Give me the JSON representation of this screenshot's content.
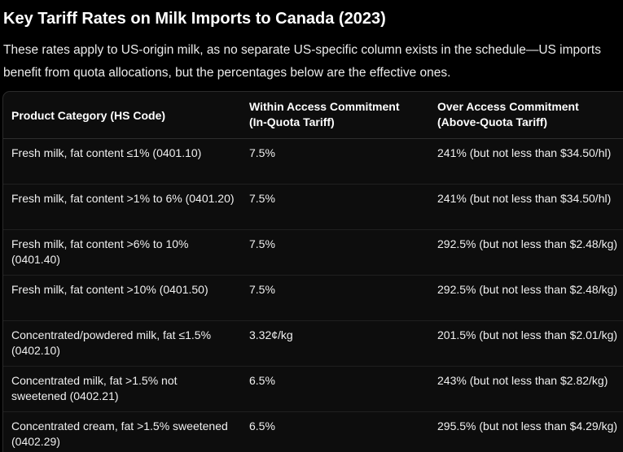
{
  "title": "Key Tariff Rates on Milk Imports to Canada (2023)",
  "intro": "These rates apply to US-origin milk, as no separate US-specific column exists in the schedule—US imports benefit from quota allocations, but the percentages below are the effective ones.",
  "table": {
    "headers": [
      "Product Category (HS Code)",
      "Within Access Commitment (In-Quota Tariff)",
      "Over Access Commitment (Above-Quota Tariff)"
    ],
    "header_lines": [
      [
        "Product Category (HS Code)"
      ],
      [
        "Within Access Commitment",
        "(In-Quota Tariff)"
      ],
      [
        "Over Access Commitment",
        "(Above-Quota Tariff)"
      ]
    ],
    "rows": [
      {
        "category": "Fresh milk, fat content ≤1% (0401.10)",
        "within": "7.5%",
        "over": "241% (but not less than $34.50/hl)"
      },
      {
        "category": "Fresh milk, fat content >1% to 6% (0401.20)",
        "within": "7.5%",
        "over": "241% (but not less than $34.50/hl)"
      },
      {
        "category": "Fresh milk, fat content >6% to 10% (0401.40)",
        "within": "7.5%",
        "over": "292.5% (but not less than $2.48/kg)"
      },
      {
        "category": "Fresh milk, fat content >10% (0401.50)",
        "within": "7.5%",
        "over": "292.5% (but not less than $2.48/kg)"
      },
      {
        "category": "Concentrated/powdered milk, fat ≤1.5% (0402.10)",
        "within": "3.32¢/kg",
        "over": "201.5% (but not less than $2.01/kg)"
      },
      {
        "category": "Concentrated milk, fat >1.5% not sweetened (0402.21)",
        "within": "6.5%",
        "over": "243% (but not less than $2.82/kg)"
      },
      {
        "category": "Concentrated cream, fat >1.5% sweetened (0402.29)",
        "within": "6.5%",
        "over": "295.5% (but not less than $4.29/kg)"
      }
    ]
  }
}
